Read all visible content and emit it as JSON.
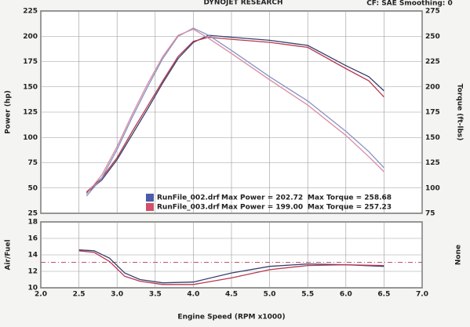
{
  "chart_data": [
    {
      "type": "line",
      "title": "DYNOJET RESEARCH",
      "subtitle": "CF: SAE  Smoothing: 0",
      "ylabel": "Power (hp)",
      "y2label": "Torque (ft-lbs)",
      "x": [
        2.6,
        2.8,
        3.0,
        3.2,
        3.4,
        3.6,
        3.8,
        4.0,
        4.2,
        4.5,
        5.0,
        5.5,
        6.0,
        6.3,
        6.5
      ],
      "xlim": [
        2,
        7
      ],
      "xticks": [
        2,
        2.5,
        3,
        3.5,
        4,
        4.5,
        5,
        5.5,
        6,
        6.5,
        7
      ],
      "ylim": [
        25,
        225
      ],
      "yticks": [
        25,
        50,
        75,
        100,
        125,
        150,
        175,
        200,
        225
      ],
      "y2lim": [
        75,
        275
      ],
      "y2ticks": [
        75,
        100,
        125,
        150,
        175,
        200,
        225,
        250,
        275
      ],
      "grid": true,
      "series": [
        {
          "color": "#34406e",
          "values": [
            45,
            58,
            78,
            103,
            128,
            154,
            178,
            194,
            201,
            199,
            196,
            191,
            171,
            160,
            146
          ]
        },
        {
          "color": "#b8384f",
          "values": [
            46,
            60,
            80,
            106,
            131,
            156,
            180,
            195,
            199,
            197,
            194,
            189,
            168,
            156,
            140
          ]
        },
        {
          "color": "#8693c4",
          "axis": "y2",
          "values": [
            92,
            110,
            138,
            170,
            200,
            228,
            250,
            258,
            251,
            236,
            210,
            186,
            156,
            136,
            120
          ]
        },
        {
          "color": "#d98aa0",
          "axis": "y2",
          "values": [
            94,
            113,
            141,
            173,
            203,
            230,
            251,
            257,
            248,
            233,
            207,
            182,
            152,
            131,
            116
          ]
        }
      ],
      "legend": [
        {
          "color": "#4a5ba8",
          "name": "RunFile_002.drf",
          "max_power": "Max Power = 202.72",
          "max_torque": "Max Torque = 258.68"
        },
        {
          "color": "#d0506a",
          "name": "RunFile_003.drf",
          "max_power": "Max Power = 199.00",
          "max_torque": "Max Torque = 257.23"
        }
      ]
    },
    {
      "type": "line",
      "ylabel": "Air/Fuel",
      "y2label": "None",
      "xlabel": "Engine Speed (RPM x1000)",
      "x": [
        2.5,
        2.7,
        2.9,
        3.1,
        3.3,
        3.6,
        4.0,
        4.5,
        5.0,
        5.5,
        6.0,
        6.5
      ],
      "xlim": [
        2,
        7
      ],
      "xticks": [
        {
          "value": 2,
          "label": "2.0"
        },
        {
          "value": 2.5,
          "label": "2.5"
        },
        {
          "value": 3,
          "label": "3.0"
        },
        {
          "value": 3.5,
          "label": "3.5"
        },
        {
          "value": 4,
          "label": "4.0"
        },
        {
          "value": 4.5,
          "label": "4.5"
        },
        {
          "value": 5,
          "label": "5.0"
        },
        {
          "value": 5.5,
          "label": "5.5"
        },
        {
          "value": 6,
          "label": "6.0"
        },
        {
          "value": 6.5,
          "label": "6.5"
        },
        {
          "value": 7,
          "label": "7.0"
        }
      ],
      "ylim": [
        10,
        18
      ],
      "yticks": [
        10,
        12,
        14,
        16,
        18
      ],
      "grid": true,
      "reference_line": 13.1,
      "reference_color": "#c0506a",
      "series": [
        {
          "color": "#34406e",
          "values": [
            14.6,
            14.5,
            13.6,
            11.8,
            11.0,
            10.6,
            10.7,
            11.8,
            12.6,
            12.9,
            12.8,
            12.6
          ]
        },
        {
          "color": "#b8384f",
          "values": [
            14.5,
            14.3,
            13.2,
            11.4,
            10.8,
            10.4,
            10.4,
            11.2,
            12.2,
            12.7,
            12.8,
            12.7
          ]
        }
      ]
    }
  ]
}
